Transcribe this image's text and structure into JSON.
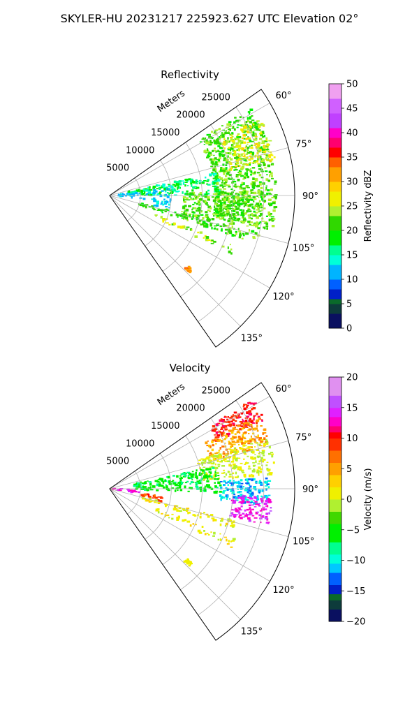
{
  "figure": {
    "title": "SKYLER-HU  20231217  225923.627 UTC Elevation 02°"
  },
  "chart_data": [
    {
      "type": "heatmap",
      "projection": "polar sector (PPI)",
      "title": "Reflectivity",
      "radial_label": "Meters",
      "radial_ticks": [
        5000,
        10000,
        15000,
        20000,
        25000
      ],
      "radial_tick_labels": [
        "5000",
        "10000",
        "15000",
        "20000",
        "25000"
      ],
      "r_range": [
        0,
        30000
      ],
      "azimuth_range_deg": [
        55,
        145
      ],
      "azimuth_ticks_deg": [
        60,
        75,
        90,
        105,
        120,
        135
      ],
      "azimuth_tick_labels": [
        "60°",
        "75°",
        "90°",
        "105°",
        "120°",
        "135°"
      ],
      "grid": true,
      "colorbar": {
        "label": "Reflectivity dBZ",
        "range": [
          0,
          50
        ],
        "ticks": [
          0,
          5,
          10,
          15,
          20,
          25,
          30,
          35,
          40,
          45,
          50
        ],
        "tick_labels": [
          "0",
          "5",
          "10",
          "15",
          "20",
          "25",
          "30",
          "35",
          "40",
          "45",
          "50"
        ],
        "colors": [
          {
            "value": 0,
            "color": "#0a1060"
          },
          {
            "value": 3,
            "color": "#0d3b3b"
          },
          {
            "value": 5,
            "color": "#0a6a2a"
          },
          {
            "value": 6,
            "color": "#0020c8"
          },
          {
            "value": 8,
            "color": "#0060ff"
          },
          {
            "value": 10,
            "color": "#00b4ff"
          },
          {
            "value": 13,
            "color": "#00ffd8"
          },
          {
            "value": 15,
            "color": "#00ff90"
          },
          {
            "value": 17,
            "color": "#00f000"
          },
          {
            "value": 20,
            "color": "#30d800"
          },
          {
            "value": 23,
            "color": "#b0f030"
          },
          {
            "value": 25,
            "color": "#f0f000"
          },
          {
            "value": 28,
            "color": "#ffd000"
          },
          {
            "value": 30,
            "color": "#ffa000"
          },
          {
            "value": 33,
            "color": "#ff6000"
          },
          {
            "value": 35,
            "color": "#ff0000"
          },
          {
            "value": 37,
            "color": "#ff0070"
          },
          {
            "value": 39,
            "color": "#ff00c8"
          },
          {
            "value": 41,
            "color": "#c040ff"
          },
          {
            "value": 44,
            "color": "#d060ff"
          },
          {
            "value": 47,
            "color": "#f0a0f0"
          },
          {
            "value": 50,
            "color": "#ffe8ff"
          }
        ]
      },
      "features": [
        {
          "az": [
            58,
            102
          ],
          "r": [
            17000,
            27000
          ],
          "value": 22,
          "spread": 3,
          "density": 0.55
        },
        {
          "az": [
            63,
            78
          ],
          "r": [
            20000,
            27500
          ],
          "value": 27,
          "spread": 3,
          "density": 0.35
        },
        {
          "az": [
            78,
            90
          ],
          "r": [
            3000,
            18000
          ],
          "value": 17,
          "spread": 3,
          "density": 0.7
        },
        {
          "az": [
            83,
            96
          ],
          "r": [
            1000,
            10000
          ],
          "value": 12,
          "spread": 2,
          "density": 0.5
        },
        {
          "az": [
            88,
            108
          ],
          "r": [
            12000,
            25000
          ],
          "value": 22,
          "spread": 3,
          "density": 0.45
        },
        {
          "az": [
            104,
            108
          ],
          "r": [
            5000,
            21000
          ],
          "value": 20,
          "spread": 2,
          "density": 0.55
        },
        {
          "az": [
            112,
            116
          ],
          "r": [
            8000,
            22000
          ],
          "value": 24,
          "spread": 3,
          "density": 0.35
        },
        {
          "az": [
            95,
            103
          ],
          "r": [
            7000,
            10000
          ],
          "value": 13,
          "spread": 2,
          "density": 0.6
        },
        {
          "az": [
            132,
            134
          ],
          "r": [
            17000,
            18000
          ],
          "value": 33,
          "spread": 3,
          "density": 0.8
        }
      ]
    },
    {
      "type": "heatmap",
      "projection": "polar sector (PPI)",
      "title": "Velocity",
      "radial_label": "Meters",
      "radial_ticks": [
        5000,
        10000,
        15000,
        20000,
        25000
      ],
      "radial_tick_labels": [
        "5000",
        "10000",
        "15000",
        "20000",
        "25000"
      ],
      "r_range": [
        0,
        30000
      ],
      "azimuth_range_deg": [
        55,
        145
      ],
      "azimuth_ticks_deg": [
        60,
        75,
        90,
        105,
        120,
        135
      ],
      "azimuth_tick_labels": [
        "60°",
        "75°",
        "90°",
        "105°",
        "120°",
        "135°"
      ],
      "grid": true,
      "colorbar": {
        "label": "Velocity (m/s)",
        "range": [
          -20,
          20
        ],
        "ticks": [
          -20,
          -15,
          -10,
          -5,
          0,
          5,
          10,
          15,
          20
        ],
        "tick_labels": [
          "−20",
          "−15",
          "−10",
          "−5",
          "0",
          "5",
          "10",
          "15",
          "20"
        ],
        "colors": [
          {
            "value": -20,
            "color": "#0a1060"
          },
          {
            "value": -18,
            "color": "#0d3b3b"
          },
          {
            "value": -16.5,
            "color": "#0a6a2a"
          },
          {
            "value": -15.5,
            "color": "#0020c8"
          },
          {
            "value": -14,
            "color": "#0060ff"
          },
          {
            "value": -12,
            "color": "#00c8ff"
          },
          {
            "value": -10.5,
            "color": "#00ffd8"
          },
          {
            "value": -9,
            "color": "#00ff90"
          },
          {
            "value": -7,
            "color": "#00f000"
          },
          {
            "value": -4,
            "color": "#40d800"
          },
          {
            "value": -2,
            "color": "#b0f030"
          },
          {
            "value": 0,
            "color": "#f0f000"
          },
          {
            "value": 2,
            "color": "#ffd000"
          },
          {
            "value": 4,
            "color": "#ffa000"
          },
          {
            "value": 6,
            "color": "#ff7000"
          },
          {
            "value": 8,
            "color": "#ff3000"
          },
          {
            "value": 10,
            "color": "#ff0000"
          },
          {
            "value": 11,
            "color": "#ff0070"
          },
          {
            "value": 12,
            "color": "#ff00c8"
          },
          {
            "value": 13.5,
            "color": "#e020ff"
          },
          {
            "value": 15,
            "color": "#c050ff"
          },
          {
            "value": 17,
            "color": "#e090f0"
          },
          {
            "value": 20,
            "color": "#ffe8ff"
          }
        ]
      },
      "features": [
        {
          "az": [
            58,
            66
          ],
          "r": [
            19000,
            27500
          ],
          "value": 10,
          "spread": 2,
          "density": 0.6
        },
        {
          "az": [
            64,
            75
          ],
          "r": [
            17000,
            27000
          ],
          "value": 5,
          "spread": 2,
          "density": 0.5
        },
        {
          "az": [
            72,
            85
          ],
          "r": [
            15000,
            27000
          ],
          "value": 0,
          "spread": 2,
          "density": 0.45
        },
        {
          "az": [
            78,
            92
          ],
          "r": [
            4000,
            18000
          ],
          "value": -6,
          "spread": 2,
          "density": 0.65
        },
        {
          "az": [
            86,
            96
          ],
          "r": [
            18000,
            26000
          ],
          "value": -11,
          "spread": 2,
          "density": 0.6
        },
        {
          "az": [
            93,
            103
          ],
          "r": [
            20000,
            26500
          ],
          "value": 14,
          "spread": 2,
          "density": 0.55
        },
        {
          "az": [
            88,
            100
          ],
          "r": [
            0,
            6000
          ],
          "value": 13,
          "spread": 2,
          "density": 0.6
        },
        {
          "az": [
            98,
            104
          ],
          "r": [
            5000,
            9000
          ],
          "value": 9,
          "spread": 2,
          "density": 0.6
        },
        {
          "az": [
            104,
            108
          ],
          "r": [
            5000,
            21000
          ],
          "value": 1,
          "spread": 2,
          "density": 0.5
        },
        {
          "az": [
            112,
            116
          ],
          "r": [
            8000,
            22000
          ],
          "value": 1,
          "spread": 2,
          "density": 0.35
        },
        {
          "az": [
            132,
            134
          ],
          "r": [
            17000,
            18000
          ],
          "value": 1,
          "spread": 1,
          "density": 0.8
        }
      ]
    }
  ]
}
